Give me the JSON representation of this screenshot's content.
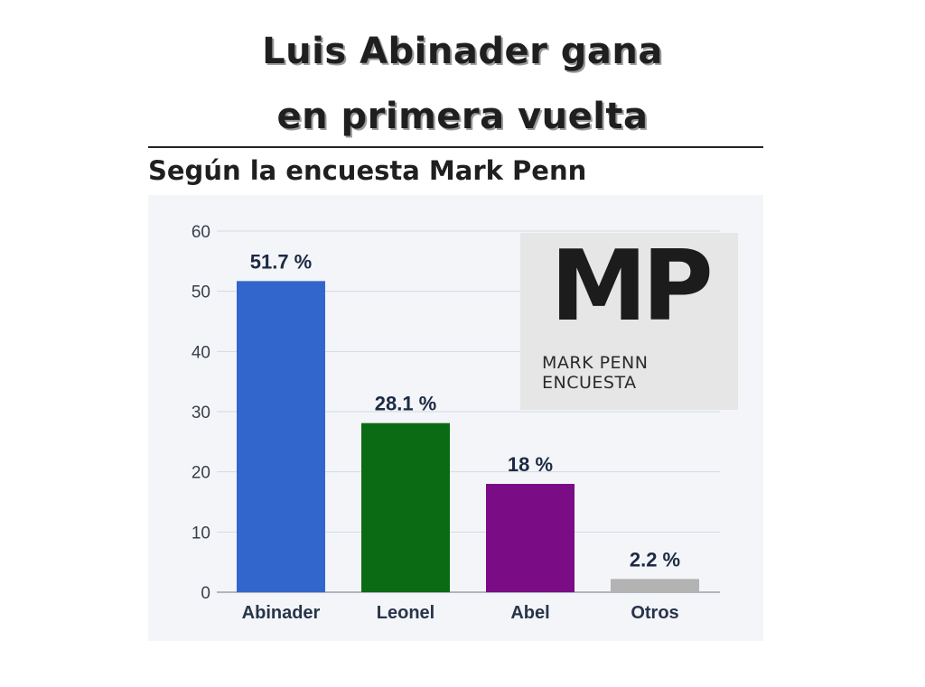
{
  "header": {
    "title_line1": "Luis Abinader gana",
    "title_line2": "en primera vuelta",
    "subtitle": "Según la encuesta Mark Penn"
  },
  "logo": {
    "mark": "MP",
    "line1": "MARK PENN",
    "line2": "ENCUESTA"
  },
  "chart_data": {
    "type": "bar",
    "title": "",
    "xlabel": "",
    "ylabel": "",
    "categories": [
      "Abinader",
      "Leonel",
      "Abel",
      "Otros"
    ],
    "values": [
      51.7,
      28.1,
      18,
      2.2
    ],
    "data_labels": [
      "51.7 %",
      "28.1 %",
      "18 %",
      "2.2 %"
    ],
    "colors": [
      "#3366cc",
      "#0b6b14",
      "#7a0d85",
      "#b3b3b3"
    ],
    "ylim": [
      0,
      60
    ],
    "yticks": [
      0,
      10,
      20,
      30,
      40,
      50,
      60
    ],
    "grid": true,
    "legend": "none"
  }
}
